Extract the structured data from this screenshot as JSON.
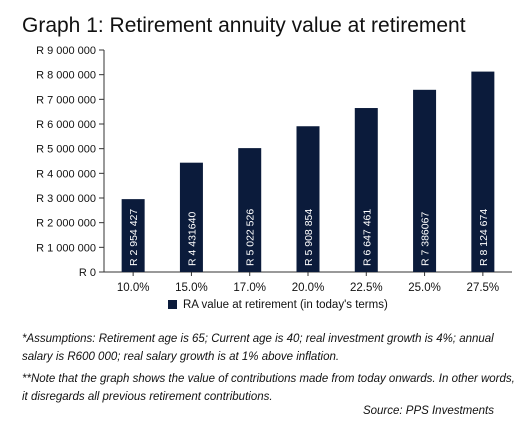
{
  "chart_data": {
    "type": "bar",
    "title": "Graph 1: Retirement annuity value at retirement",
    "categories": [
      "10.0%",
      "15.0%",
      "17.0%",
      "20.0%",
      "22.5%",
      "25.0%",
      "27.5%"
    ],
    "values": [
      2954427,
      4431640,
      5022526,
      5908854,
      6647461,
      7386067,
      8124674
    ],
    "data_labels": [
      "R 2 954 427",
      "R 4 431640",
      "R 5 022 526",
      "R 5 908 854",
      "R 6 647 461",
      "R 7 386067",
      "R 8 124 674"
    ],
    "y_ticks": [
      0,
      1000000,
      2000000,
      3000000,
      4000000,
      5000000,
      6000000,
      7000000,
      8000000,
      9000000
    ],
    "y_tick_labels": [
      "R 0",
      "R 1 000 000",
      "R 2 000 000",
      "R 3 000 000",
      "R 4 000 000",
      "R 5 000 000",
      "R 6 000 000",
      "R 7 000 000",
      "R 8 000 000",
      "R 9 000 000"
    ],
    "ylim": [
      0,
      9000000
    ],
    "series": [
      {
        "name": "RA value at retirement (in today's terms)",
        "values": [
          2954427,
          4431640,
          5022526,
          5908854,
          6647461,
          7386067,
          8124674
        ]
      }
    ],
    "legend_position": "bottom",
    "grid": false,
    "bar_color": "#0b1b3b",
    "label_color": "#ffffff"
  },
  "notes": {
    "assumptions": "*Assumptions: Retirement age is 65; Current age is 40; real investment growth is 4%; annual salary is R600 000; real salary growth is at 1% above inflation.",
    "note": "**Note that the graph shows the value of contributions made from today onwards. In other words, it disregards all previous retirement contributions.",
    "source": "Source: PPS Investments"
  }
}
